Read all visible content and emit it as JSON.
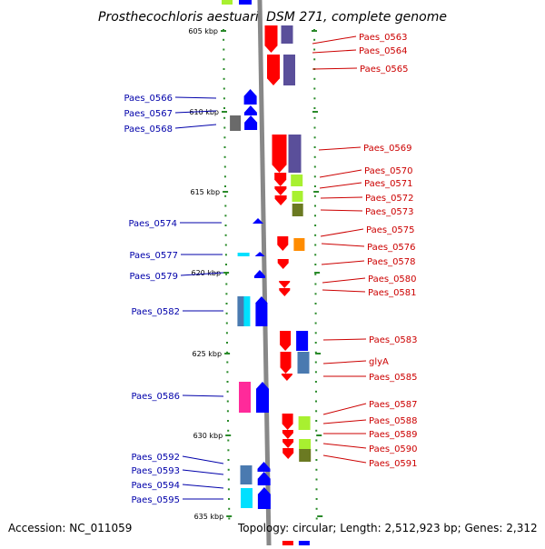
{
  "title": "Prosthecochloris aestuarii DSM 271, complete genome",
  "accession": "Accession: NC_011059",
  "summary": "Topology: circular; Length: 2,512,923 bp; Genes: 2,312",
  "colors": {
    "red": "#ff0000",
    "slate": "#5a4f9a",
    "lime": "#a8f030",
    "olive": "#6b7a22",
    "orange": "#ff8c00",
    "blue": "#0000ff",
    "steel": "#4a7ab0",
    "cyan": "#00e0ff",
    "gray": "#6a6a6a",
    "pink": "#ff2a9a",
    "label_right": "#cc0000",
    "label_left": "#0000aa",
    "tick": "#2a8a2a"
  },
  "ruler": [
    {
      "label": "605 kbp",
      "kbp": 605
    },
    {
      "label": "610 kbp",
      "kbp": 610
    },
    {
      "label": "615 kbp",
      "kbp": 615
    },
    {
      "label": "620 kbp",
      "kbp": 620
    },
    {
      "label": "625 kbp",
      "kbp": 625
    },
    {
      "label": "630 kbp",
      "kbp": 630
    },
    {
      "label": "635 kbp",
      "kbp": 635
    }
  ],
  "right_labels": [
    "Paes_0563",
    "Paes_0564",
    "Paes_0565",
    "Paes_0569",
    "Paes_0570",
    "Paes_0571",
    "Paes_0572",
    "Paes_0573",
    "Paes_0575",
    "Paes_0576",
    "Paes_0578",
    "Paes_0580",
    "Paes_0581",
    "Paes_0583",
    "glyA",
    "Paes_0585",
    "Paes_0587",
    "Paes_0588",
    "Paes_0589",
    "Paes_0590",
    "Paes_0591"
  ],
  "left_labels": [
    "Paes_0566",
    "Paes_0567",
    "Paes_0568",
    "Paes_0574",
    "Paes_0577",
    "Paes_0579",
    "Paes_0582",
    "Paes_0586",
    "Paes_0592",
    "Paes_0593",
    "Paes_0594",
    "Paes_0595"
  ]
}
